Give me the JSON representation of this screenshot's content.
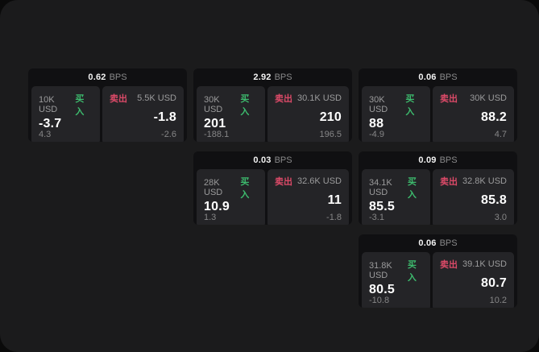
{
  "labels": {
    "bps_unit": "BPS",
    "buy": "买入",
    "sell": "卖出"
  },
  "colors": {
    "buy_green": "#3dbc6e",
    "sell_red": "#dc4a68",
    "window_bg": "#1b1b1c",
    "card_bg": "#101012",
    "panel_bg": "#242427"
  },
  "cards": [
    {
      "row": 1,
      "col": 1,
      "bps": "0.62",
      "buy_size": "10K USD",
      "buy_price": "-3.7",
      "buy_sub": "4.3",
      "sell_size": "5.5K USD",
      "sell_price": "-1.8",
      "sell_sub": "-2.6"
    },
    {
      "row": 1,
      "col": 2,
      "bps": "2.92",
      "buy_size": "30K USD",
      "buy_price": "201",
      "buy_sub": "-188.1",
      "sell_size": "30.1K USD",
      "sell_price": "210",
      "sell_sub": "196.5"
    },
    {
      "row": 1,
      "col": 3,
      "bps": "0.06",
      "buy_size": "30K USD",
      "buy_price": "88",
      "buy_sub": "-4.9",
      "sell_size": "30K USD",
      "sell_price": "88.2",
      "sell_sub": "4.7"
    },
    {
      "row": 2,
      "col": 2,
      "bps": "0.03",
      "buy_size": "28K USD",
      "buy_price": "10.9",
      "buy_sub": "1.3",
      "sell_size": "32.6K USD",
      "sell_price": "11",
      "sell_sub": "-1.8"
    },
    {
      "row": 2,
      "col": 3,
      "bps": "0.09",
      "buy_size": "34.1K USD",
      "buy_price": "85.5",
      "buy_sub": "-3.1",
      "sell_size": "32.8K USD",
      "sell_price": "85.8",
      "sell_sub": "3.0"
    },
    {
      "row": 3,
      "col": 3,
      "bps": "0.06",
      "buy_size": "31.8K USD",
      "buy_price": "80.5",
      "buy_sub": "-10.8",
      "sell_size": "39.1K USD",
      "sell_price": "80.7",
      "sell_sub": "10.2"
    }
  ]
}
